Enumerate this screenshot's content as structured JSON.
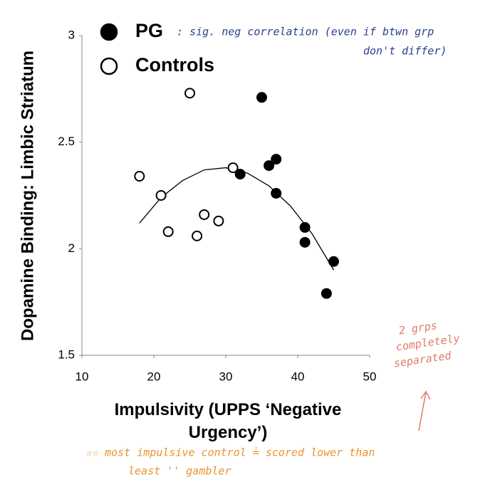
{
  "chart_data": {
    "type": "scatter",
    "xlabel": "Impulsivity (UPPS ‘Negative Urgency’)",
    "ylabel": "Dopamine Binding: Limbic Striatum",
    "xlim": [
      10,
      50
    ],
    "ylim": [
      1.5,
      3
    ],
    "xticks": [
      10,
      20,
      30,
      40,
      50
    ],
    "yticks": [
      1.5,
      2,
      2.5,
      3
    ],
    "series": [
      {
        "name": "PG",
        "color": "#000000",
        "filled": true,
        "x": [
          35,
          36,
          37,
          32,
          37,
          41,
          41,
          45,
          44
        ],
        "values": [
          2.71,
          2.39,
          2.42,
          2.35,
          2.26,
          2.1,
          2.03,
          1.94,
          1.79
        ]
      },
      {
        "name": "Controls",
        "color": "#000000",
        "filled": false,
        "x": [
          18,
          21,
          22,
          25,
          26,
          27,
          29,
          31
        ],
        "values": [
          2.34,
          2.25,
          2.08,
          2.73,
          2.06,
          2.16,
          2.13,
          2.38
        ]
      }
    ],
    "trendline": {
      "color": "#000000",
      "x": [
        18,
        21,
        24,
        27,
        30,
        33,
        36,
        39,
        42,
        45
      ],
      "values": [
        2.12,
        2.24,
        2.32,
        2.37,
        2.38,
        2.355,
        2.295,
        2.2,
        2.07,
        1.9
      ]
    },
    "annotations": [
      {
        "text": ": sig. neg correlation (even if btwn grp",
        "color": "#2b3f8c"
      },
      {
        "text": "don't differ)",
        "color": "#2b3f8c"
      },
      {
        "text": "2 grps",
        "color": "#e07a6a"
      },
      {
        "text": "completely",
        "color": "#e07a6a"
      },
      {
        "text": "separated",
        "color": "#e07a6a"
      },
      {
        "text": "☆☆ most impulsive control ≟ scored lower than",
        "color": "#e8932e"
      },
      {
        "text": "least    ''    gambler",
        "color": "#e8932e"
      }
    ]
  }
}
